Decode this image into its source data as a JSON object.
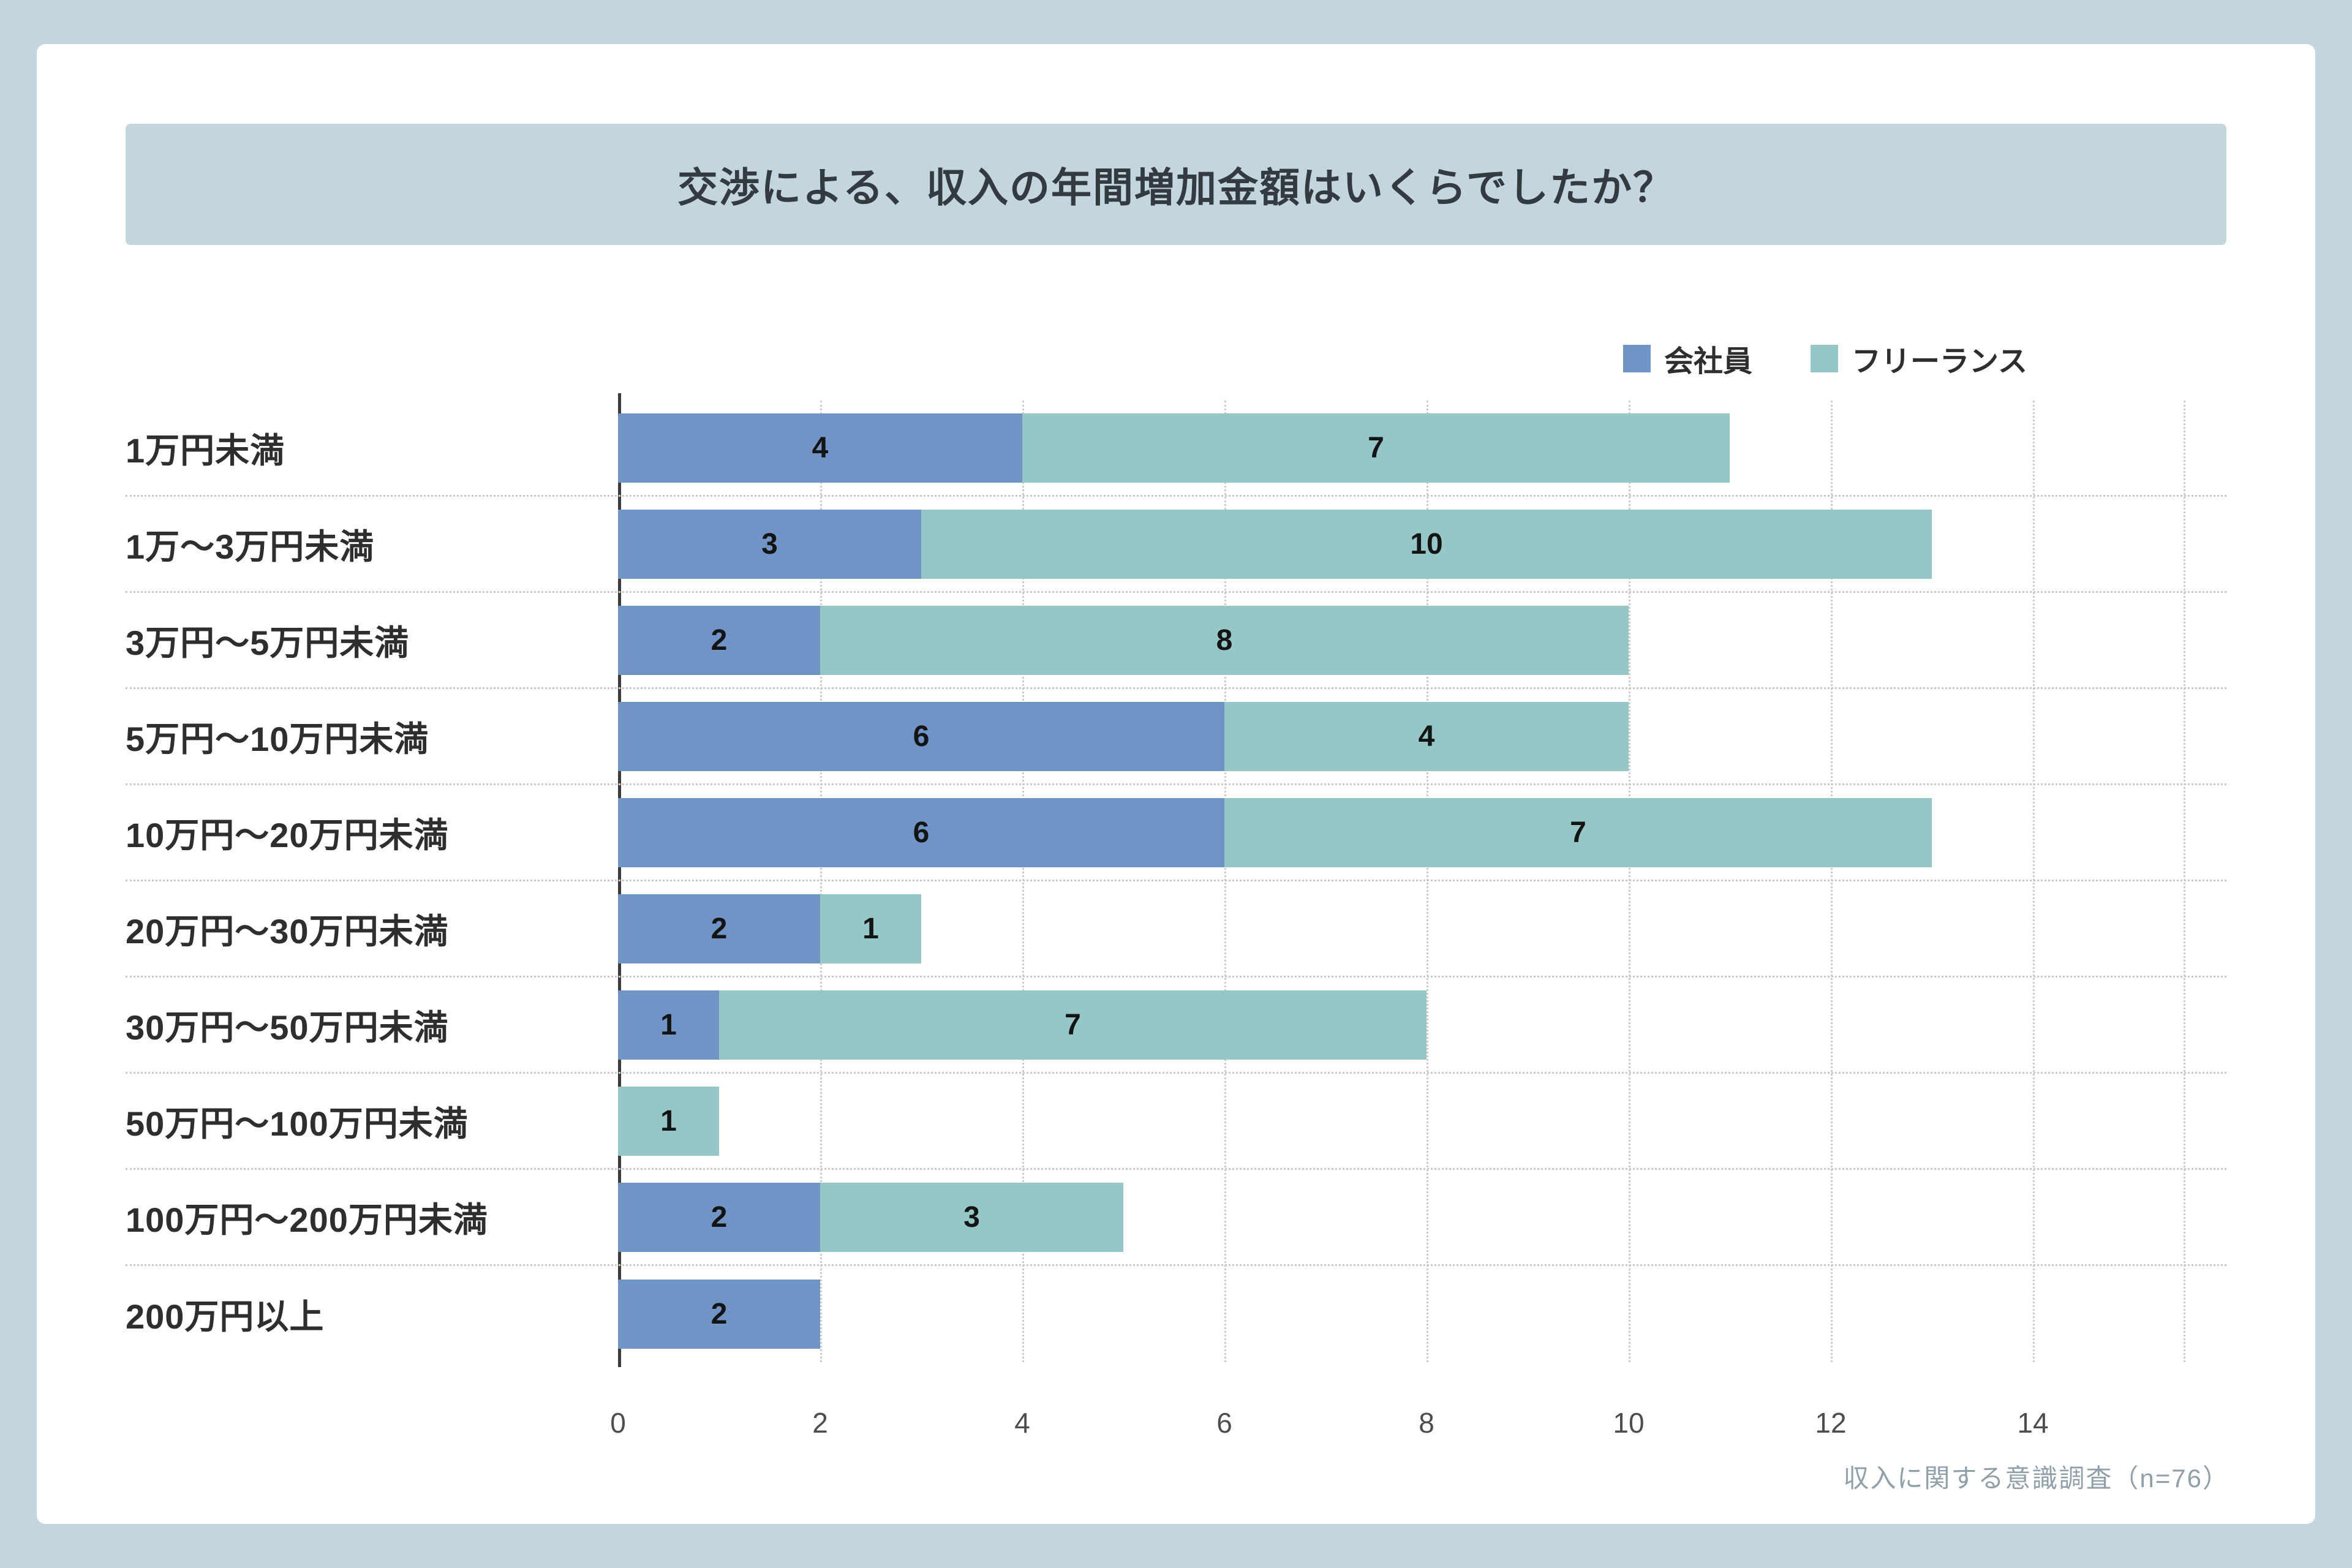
{
  "title": "交渉による、収入の年間増加金額はいくらでしたか？",
  "footnote": "収入に関する意識調査（n=76）",
  "legend": {
    "items": [
      {
        "label": "会社員",
        "color": "#6f94c5"
      },
      {
        "label": "フリーランス",
        "color": "#94c7c5"
      }
    ]
  },
  "colors": {
    "outer_background": "#c3d5dd",
    "card_background": "#ffffff",
    "banner_background": "#c3d5dd",
    "series_blue": "#6f94c5",
    "series_teal": "#94c7c5",
    "axis_line": "#3c3c3c",
    "gridline": "#cccccc",
    "label_text": "#2e2e2e",
    "tick_text": "#4d4d4d",
    "footnote_text": "#90a0aa"
  },
  "chart_data": {
    "type": "bar",
    "orientation": "horizontal",
    "stacked": true,
    "title": "交渉による、収入の年間増加金額はいくらでしたか？",
    "categories": [
      "1万円未満",
      "1万～3万円未満",
      "3万円～5万円未満",
      "5万円～10万円未満",
      "10万円～20万円未満",
      "20万円～30万円未満",
      "30万円～50万円未満",
      "50万円～100万円未満",
      "100万円～200万円未満",
      "200万円以上"
    ],
    "series": [
      {
        "name": "会社員",
        "color": "#6f94c5",
        "values": [
          4,
          3,
          2,
          6,
          6,
          2,
          1,
          0,
          2,
          2
        ]
      },
      {
        "name": "フリーランス",
        "color": "#94c7c5",
        "values": [
          7,
          10,
          8,
          4,
          7,
          1,
          7,
          1,
          3,
          0
        ]
      }
    ],
    "xlabel": "",
    "ylabel": "",
    "xlim": [
      0,
      15.5
    ],
    "xticks": [
      0,
      2,
      4,
      6,
      8,
      10,
      12,
      14
    ],
    "grid": true,
    "legend_position": "top-right",
    "source_note": "収入に関する意識調査（n=76）"
  }
}
